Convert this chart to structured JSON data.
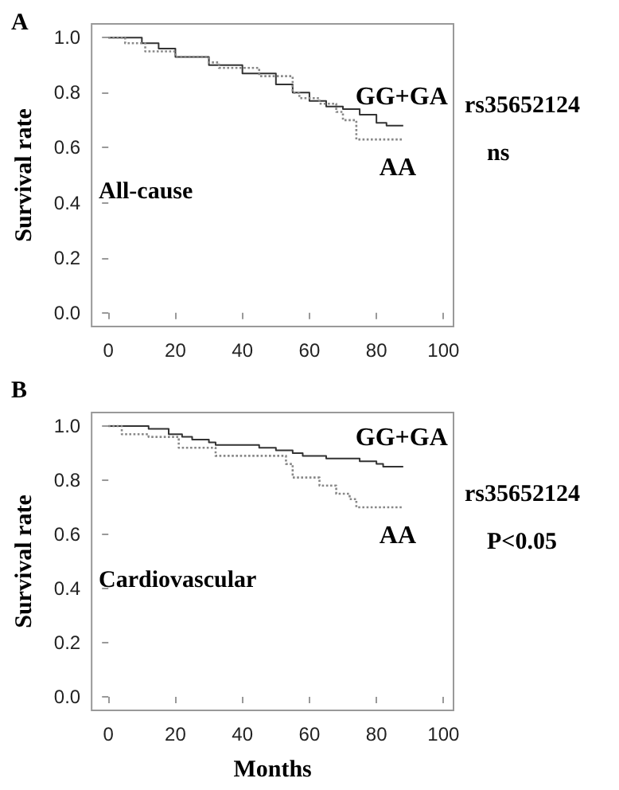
{
  "chart_data": [
    {
      "type": "step",
      "title": "A",
      "ylabel": "Survival rate",
      "annotations": [
        "All-cause",
        "rs35652124",
        "ns"
      ],
      "xlim": [
        -5,
        103
      ],
      "ylim": [
        -0.05,
        1.05
      ],
      "xticks": [
        0,
        20,
        40,
        60,
        80,
        100
      ],
      "yticks": [
        {
          "value": 0,
          "label": "0.0"
        },
        {
          "value": 0.2,
          "label": "0.2"
        },
        {
          "value": 0.4,
          "label": "0.4"
        },
        {
          "value": 0.6,
          "label": "0.6"
        },
        {
          "value": 0.8,
          "label": "0.8"
        },
        {
          "value": 1,
          "label": "1.0"
        }
      ],
      "grid": false,
      "legend": false,
      "series": [
        {
          "name": "GG+GA",
          "color": "#333333",
          "line_style": "solid",
          "x": [
            0,
            6,
            10,
            15,
            20,
            30,
            40,
            50,
            55,
            60,
            65,
            70,
            75,
            80,
            83,
            88
          ],
          "values": [
            1,
            1,
            0.98,
            0.96,
            0.93,
            0.9,
            0.87,
            0.83,
            0.8,
            0.77,
            0.75,
            0.74,
            0.72,
            0.69,
            0.68,
            0.68
          ]
        },
        {
          "name": "AA",
          "color": "#888888",
          "line_style": "dotted",
          "x": [
            0,
            5,
            11,
            20,
            30,
            33,
            45,
            53,
            55,
            57,
            63,
            68,
            70,
            74,
            88
          ],
          "values": [
            1,
            0.98,
            0.95,
            0.93,
            0.91,
            0.89,
            0.86,
            0.86,
            0.8,
            0.78,
            0.76,
            0.73,
            0.7,
            0.63,
            0.63
          ]
        }
      ]
    },
    {
      "type": "step",
      "title": "B",
      "xlabel": "Months",
      "ylabel": "Survival rate",
      "annotations": [
        "Cardiovascular",
        "rs35652124",
        "P<0.05"
      ],
      "xlim": [
        -5,
        103
      ],
      "ylim": [
        -0.05,
        1.05
      ],
      "xticks": [
        0,
        20,
        40,
        60,
        80,
        100
      ],
      "yticks": [
        {
          "value": 0,
          "label": "0.0"
        },
        {
          "value": 0.2,
          "label": "0.2"
        },
        {
          "value": 0.4,
          "label": "0.4"
        },
        {
          "value": 0.6,
          "label": "0.6"
        },
        {
          "value": 0.8,
          "label": "0.8"
        },
        {
          "value": 1,
          "label": "1.0"
        }
      ],
      "grid": false,
      "legend": false,
      "series": [
        {
          "name": "GG+GA",
          "color": "#333333",
          "line_style": "solid",
          "x": [
            0,
            8,
            12,
            18,
            22,
            25,
            30,
            32,
            45,
            50,
            55,
            58,
            65,
            75,
            80,
            82,
            88
          ],
          "values": [
            1,
            1,
            0.99,
            0.97,
            0.96,
            0.95,
            0.94,
            0.93,
            0.92,
            0.91,
            0.9,
            0.89,
            0.88,
            0.87,
            0.86,
            0.85,
            0.85
          ]
        },
        {
          "name": "AA",
          "color": "#888888",
          "line_style": "dotted",
          "x": [
            0,
            4,
            12,
            21,
            32,
            53,
            55,
            63,
            68,
            72,
            74,
            88
          ],
          "values": [
            1,
            0.97,
            0.96,
            0.92,
            0.89,
            0.86,
            0.81,
            0.78,
            0.75,
            0.73,
            0.7,
            0.7
          ]
        }
      ]
    }
  ]
}
